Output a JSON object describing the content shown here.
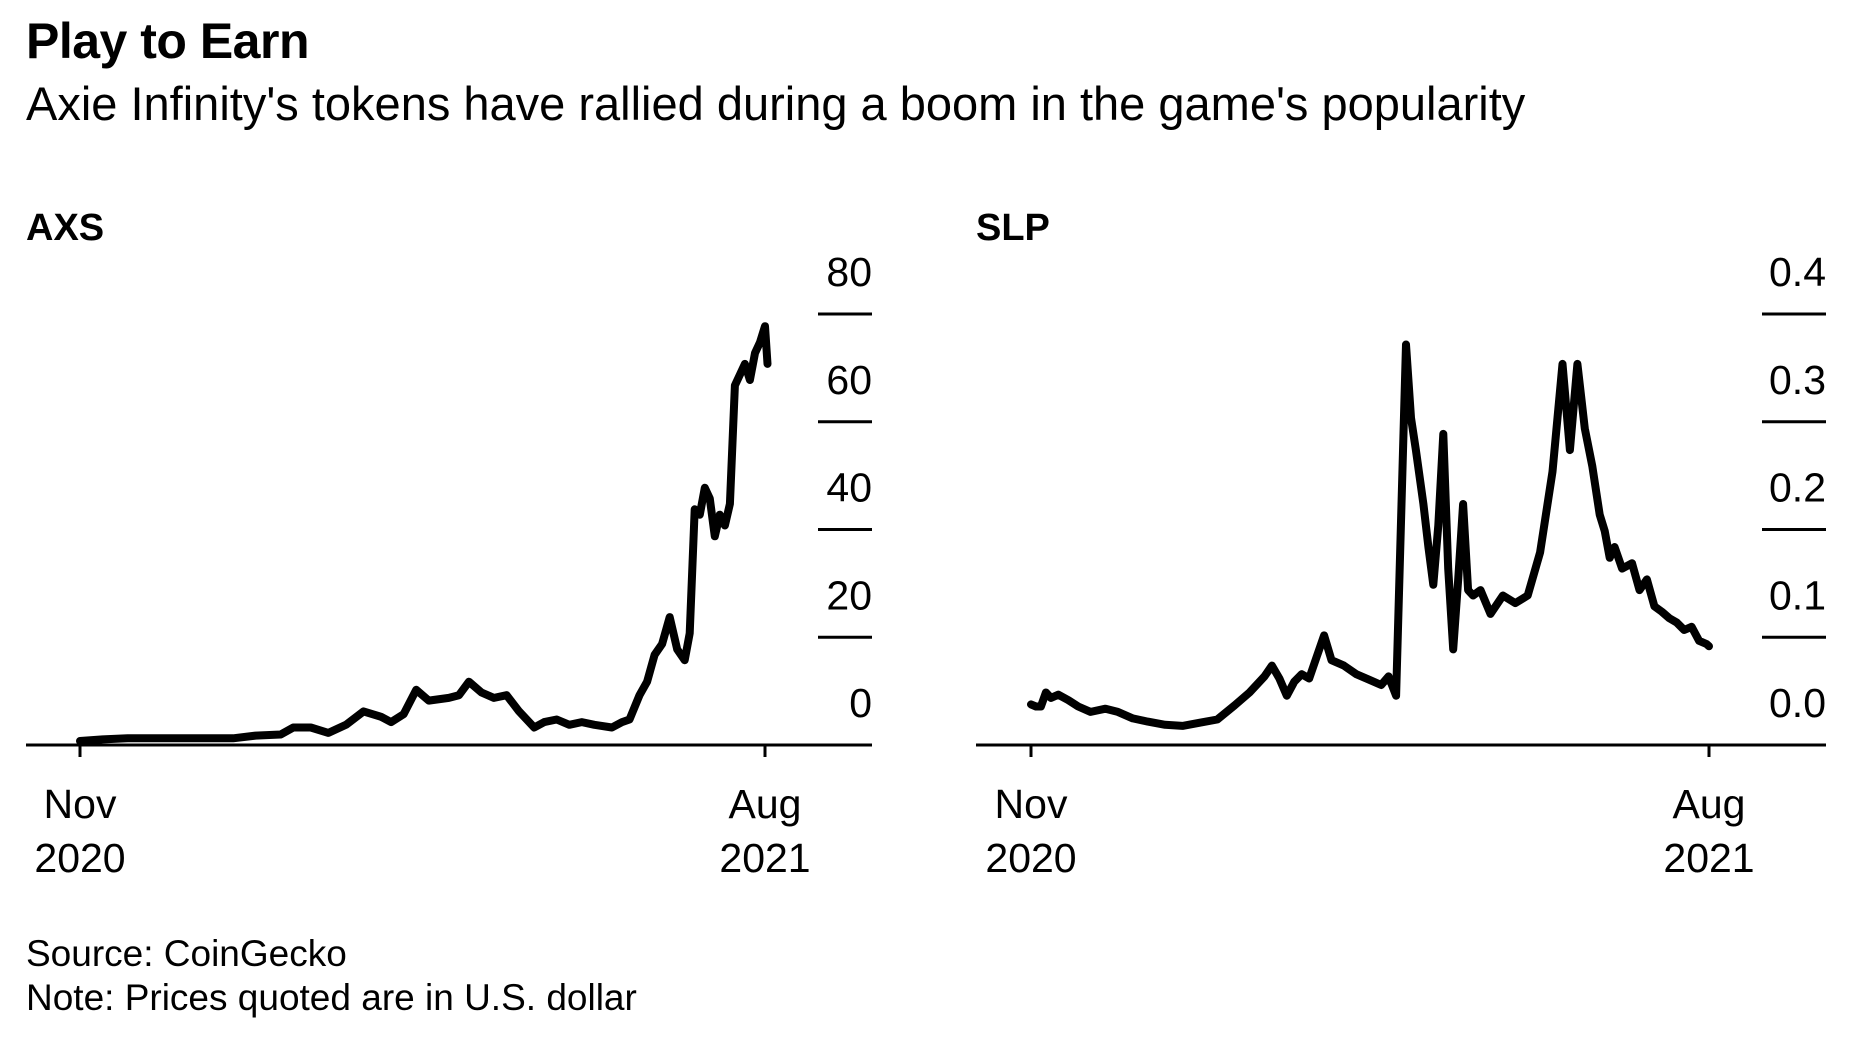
{
  "title": "Play to Earn",
  "subtitle": "Axie Infinity's tokens have rallied during a boom in the game's popularity",
  "source": "Source: CoinGecko",
  "note": "Note: Prices quoted are in U.S. dollar",
  "colors": {
    "line": "#000000",
    "background": "#ffffff"
  },
  "chart_data": [
    {
      "type": "line",
      "title": "AXS",
      "x_tick_labels": [
        [
          "Nov",
          "2020"
        ],
        [
          "Aug",
          "2021"
        ]
      ],
      "y_ticks": [
        "0",
        "20",
        "40",
        "60",
        "80"
      ],
      "ylim": [
        0,
        80
      ],
      "xlim": [
        "2020-11-01",
        "2021-08-01"
      ],
      "grid": false,
      "series": [
        {
          "x": [
            "2020-11-01",
            "2020-11-10",
            "2020-11-20",
            "2020-12-01",
            "2020-12-15",
            "2021-01-01",
            "2021-01-10",
            "2021-01-20",
            "2021-01-25",
            "2021-02-01",
            "2021-02-08",
            "2021-02-15",
            "2021-02-22",
            "2021-03-01",
            "2021-03-05",
            "2021-03-10",
            "2021-03-15",
            "2021-03-20",
            "2021-03-28",
            "2021-04-01",
            "2021-04-05",
            "2021-04-10",
            "2021-04-15",
            "2021-04-20",
            "2021-04-25",
            "2021-05-01",
            "2021-05-05",
            "2021-05-10",
            "2021-05-15",
            "2021-05-20",
            "2021-05-25",
            "2021-06-01",
            "2021-06-05",
            "2021-06-08",
            "2021-06-12",
            "2021-06-15",
            "2021-06-18",
            "2021-06-21",
            "2021-06-24",
            "2021-06-27",
            "2021-06-30",
            "2021-07-02",
            "2021-07-04",
            "2021-07-06",
            "2021-07-08",
            "2021-07-10",
            "2021-07-12",
            "2021-07-14",
            "2021-07-16",
            "2021-07-18",
            "2021-07-20",
            "2021-07-22",
            "2021-07-24",
            "2021-07-26",
            "2021-07-28",
            "2021-07-30",
            "2021-08-01",
            "2021-08-02"
          ],
          "y": [
            0.0,
            0.3,
            0.5,
            0.5,
            0.5,
            0.5,
            1.0,
            1.2,
            2.5,
            2.5,
            1.5,
            3.0,
            5.5,
            4.5,
            3.5,
            5.0,
            9.5,
            7.5,
            8.0,
            8.5,
            11.0,
            9.0,
            8.0,
            8.5,
            5.5,
            2.5,
            3.5,
            4.0,
            3.0,
            3.5,
            3.0,
            2.5,
            3.5,
            4.0,
            8.5,
            11.0,
            16.0,
            18.0,
            23.0,
            17.0,
            15.0,
            20.0,
            43.0,
            42.0,
            47.0,
            45.0,
            38.0,
            42.0,
            40.0,
            44.0,
            66.0,
            68.0,
            70.0,
            67.0,
            72.0,
            74.0,
            77.0,
            70.0
          ]
        }
      ]
    },
    {
      "type": "line",
      "title": "SLP",
      "x_tick_labels": [
        [
          "Nov",
          "2020"
        ],
        [
          "Aug",
          "2021"
        ]
      ],
      "y_ticks": [
        "0.0",
        "0.1",
        "0.2",
        "0.3",
        "0.4"
      ],
      "ylim": [
        0,
        0.4
      ],
      "xlim": [
        "2020-11-01",
        "2021-08-01"
      ],
      "grid": false,
      "series": [
        {
          "x": [
            "2020-11-01",
            "2020-11-03",
            "2020-11-05",
            "2020-11-07",
            "2020-11-09",
            "2020-11-12",
            "2020-11-16",
            "2020-11-20",
            "2020-11-25",
            "2020-12-01",
            "2020-12-06",
            "2020-12-12",
            "2020-12-18",
            "2020-12-25",
            "2021-01-01",
            "2021-01-08",
            "2021-01-15",
            "2021-01-22",
            "2021-01-28",
            "2021-02-03",
            "2021-02-06",
            "2021-02-09",
            "2021-02-12",
            "2021-02-15",
            "2021-02-18",
            "2021-02-21",
            "2021-02-24",
            "2021-02-27",
            "2021-03-02",
            "2021-03-07",
            "2021-03-12",
            "2021-03-17",
            "2021-03-22",
            "2021-03-25",
            "2021-03-28",
            "2021-04-01",
            "2021-04-03",
            "2021-04-05",
            "2021-04-08",
            "2021-04-10",
            "2021-04-12",
            "2021-04-14",
            "2021-04-16",
            "2021-04-18",
            "2021-04-20",
            "2021-04-22",
            "2021-04-24",
            "2021-04-26",
            "2021-04-28",
            "2021-05-01",
            "2021-05-05",
            "2021-05-10",
            "2021-05-15",
            "2021-05-20",
            "2021-05-25",
            "2021-05-30",
            "2021-06-03",
            "2021-06-06",
            "2021-06-09",
            "2021-06-12",
            "2021-06-15",
            "2021-06-18",
            "2021-06-20",
            "2021-06-22",
            "2021-06-24",
            "2021-06-27",
            "2021-07-01",
            "2021-07-04",
            "2021-07-07",
            "2021-07-10",
            "2021-07-13",
            "2021-07-16",
            "2021-07-19",
            "2021-07-22",
            "2021-07-25",
            "2021-07-28",
            "2021-07-31",
            "2021-08-01"
          ],
          "y": [
            0.034,
            0.032,
            0.032,
            0.045,
            0.04,
            0.043,
            0.038,
            0.032,
            0.027,
            0.03,
            0.027,
            0.021,
            0.018,
            0.015,
            0.014,
            0.017,
            0.02,
            0.033,
            0.045,
            0.06,
            0.07,
            0.058,
            0.042,
            0.055,
            0.062,
            0.058,
            0.078,
            0.098,
            0.075,
            0.07,
            0.062,
            0.057,
            0.052,
            0.06,
            0.042,
            0.368,
            0.3,
            0.27,
            0.22,
            0.18,
            0.145,
            0.2,
            0.285,
            0.16,
            0.085,
            0.15,
            0.22,
            0.14,
            0.135,
            0.14,
            0.118,
            0.135,
            0.128,
            0.135,
            0.175,
            0.25,
            0.35,
            0.27,
            0.35,
            0.29,
            0.255,
            0.21,
            0.195,
            0.17,
            0.18,
            0.16,
            0.165,
            0.14,
            0.15,
            0.125,
            0.12,
            0.114,
            0.11,
            0.103,
            0.106,
            0.093,
            0.09,
            0.088
          ]
        }
      ]
    }
  ]
}
